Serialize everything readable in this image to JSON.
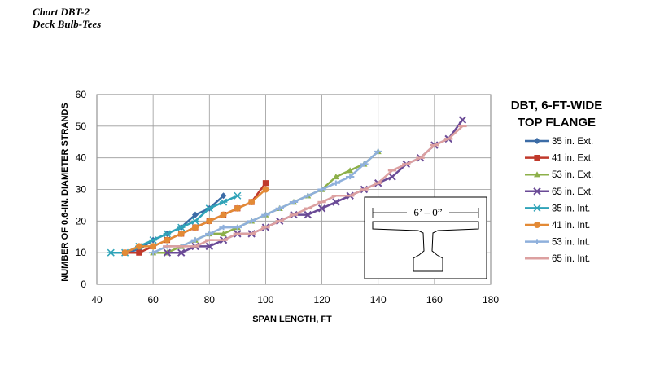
{
  "header": {
    "chart_id": "Chart DBT-2",
    "subtitle": "Deck Bulb-Tees"
  },
  "chart_data": {
    "type": "line",
    "title_lines": [
      "DBT, 6-FT-WIDE",
      "TOP FLANGE"
    ],
    "xlabel": "SPAN LENGTH, FT",
    "ylabel": "NUMBER OF 0.6-IN. DIAMETER STRANDS",
    "xlim": [
      40,
      180
    ],
    "ylim": [
      0,
      60
    ],
    "xticks": [
      40,
      60,
      80,
      100,
      120,
      140,
      160,
      180
    ],
    "yticks": [
      0,
      10,
      20,
      30,
      40,
      50,
      60
    ],
    "grid": true,
    "legend_position": "right",
    "inset_label": "6’ – 0”",
    "series": [
      {
        "name": "35 in. Ext.",
        "color": "#3c6ca6",
        "marker": "diamond",
        "x": [
          50,
          55,
          60,
          65,
          70,
          75,
          80,
          85
        ],
        "y": [
          10,
          11,
          14,
          16,
          18,
          22,
          24,
          28
        ]
      },
      {
        "name": "41 in. Ext.",
        "color": "#c0392b",
        "marker": "square",
        "x": [
          50,
          55,
          60,
          65,
          70,
          75,
          80,
          85,
          90,
          95,
          100
        ],
        "y": [
          10,
          10,
          12,
          14,
          16,
          18,
          20,
          22,
          24,
          26,
          32
        ]
      },
      {
        "name": "53 in. Ext.",
        "color": "#8db04a",
        "marker": "triangle",
        "x": [
          60,
          65,
          70,
          75,
          80,
          85,
          90,
          95,
          100,
          105,
          110,
          115,
          120,
          125,
          130,
          135,
          140
        ],
        "y": [
          10,
          10,
          12,
          14,
          16,
          16,
          18,
          20,
          22,
          24,
          26,
          28,
          30,
          34,
          36,
          38,
          42
        ]
      },
      {
        "name": "65 in. Ext.",
        "color": "#6a4a96",
        "marker": "x",
        "x": [
          65,
          70,
          75,
          80,
          85,
          90,
          95,
          100,
          105,
          110,
          115,
          120,
          125,
          130,
          135,
          140,
          145,
          150,
          155,
          160,
          165,
          170
        ],
        "y": [
          10,
          10,
          12,
          12,
          14,
          16,
          16,
          18,
          20,
          22,
          22,
          24,
          26,
          28,
          30,
          32,
          34,
          38,
          40,
          44,
          46,
          52
        ]
      },
      {
        "name": "35 in. Int.",
        "color": "#2fa3b8",
        "marker": "asterisk",
        "x": [
          45,
          50,
          55,
          60,
          65,
          70,
          75,
          80,
          85,
          90
        ],
        "y": [
          10,
          10,
          12,
          14,
          16,
          18,
          20,
          24,
          26,
          28
        ]
      },
      {
        "name": "41 in. Int.",
        "color": "#e38a36",
        "marker": "circle",
        "x": [
          50,
          55,
          60,
          65,
          70,
          75,
          80,
          85,
          90,
          95,
          100
        ],
        "y": [
          10,
          12,
          12,
          14,
          16,
          18,
          20,
          22,
          24,
          26,
          30
        ]
      },
      {
        "name": "53 in. Int.",
        "color": "#8fb0dc",
        "marker": "plus",
        "x": [
          60,
          65,
          70,
          75,
          80,
          85,
          90,
          95,
          100,
          105,
          110,
          115,
          120,
          125,
          130,
          135,
          140
        ],
        "y": [
          10,
          12,
          12,
          14,
          16,
          18,
          18,
          20,
          22,
          24,
          26,
          28,
          30,
          32,
          34,
          38,
          42
        ]
      },
      {
        "name": "65 in. Int.",
        "color": "#dca0a0",
        "marker": "dash",
        "x": [
          65,
          70,
          75,
          80,
          85,
          90,
          95,
          100,
          105,
          110,
          115,
          120,
          125,
          130,
          135,
          140,
          145,
          150,
          155,
          160,
          165,
          170
        ],
        "y": [
          12,
          12,
          12,
          14,
          14,
          16,
          16,
          18,
          20,
          22,
          24,
          26,
          28,
          28,
          30,
          32,
          36,
          38,
          40,
          44,
          46,
          50
        ]
      }
    ]
  }
}
